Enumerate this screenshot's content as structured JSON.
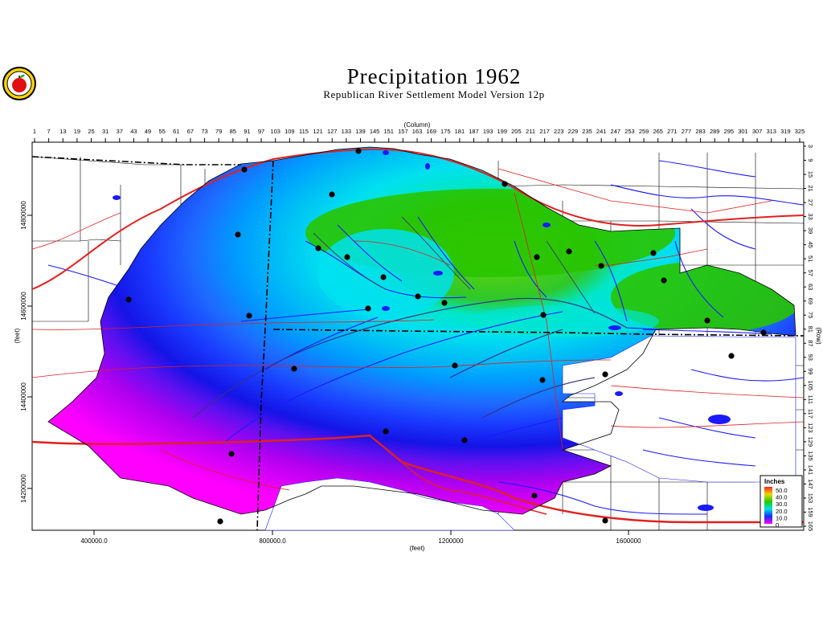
{
  "header": {
    "title": "Precipitation  1962",
    "subtitle": "Republican River Settlement Model Version 12p"
  },
  "logo": {
    "icon": "apple-seal-icon"
  },
  "axes": {
    "top_label": "(Column)",
    "right_label": "(Row)",
    "left_label": "(feet)",
    "bottom_label": "(feet)",
    "columns": [
      "1",
      "7",
      "13",
      "19",
      "25",
      "31",
      "37",
      "43",
      "49",
      "55",
      "61",
      "67",
      "73",
      "79",
      "85",
      "91",
      "97",
      "103",
      "109",
      "115",
      "121",
      "127",
      "133",
      "139",
      "145",
      "151",
      "157",
      "163",
      "169",
      "175",
      "181",
      "187",
      "193",
      "199",
      "205",
      "211",
      "217",
      "223",
      "229",
      "235",
      "241",
      "247",
      "253",
      "259",
      "265",
      "271",
      "277",
      "283",
      "289",
      "295",
      "301",
      "307",
      "313",
      "319",
      "325"
    ],
    "rows": [
      "3",
      "9",
      "15",
      "21",
      "27",
      "33",
      "39",
      "45",
      "51",
      "57",
      "63",
      "69",
      "75",
      "81",
      "87",
      "93",
      "99",
      "105",
      "111",
      "117",
      "123",
      "129",
      "135",
      "141",
      "147",
      "153",
      "159",
      "165"
    ],
    "x_ticks": [
      "400000.0",
      "800000.0",
      "1200000",
      "1600000"
    ],
    "y_ticks": [
      "14800000",
      "14600000",
      "14400000",
      "14200000"
    ]
  },
  "legend": {
    "title": "Inches",
    "items": [
      {
        "label": "50.0",
        "color": "#ff2020"
      },
      {
        "label": "40.0",
        "color": "#e6d800"
      },
      {
        "label": "30.0",
        "color": "#27c800"
      },
      {
        "label": "20.0",
        "color": "#00e0e6"
      },
      {
        "label": "10.0",
        "color": "#1030f0"
      },
      {
        "label": "0",
        "color": "#ff00ff"
      }
    ]
  },
  "colors": {
    "boundary": "#000000",
    "roads": "#e02020",
    "rivers": "#1a1aff",
    "county_lines": "#000000"
  }
}
